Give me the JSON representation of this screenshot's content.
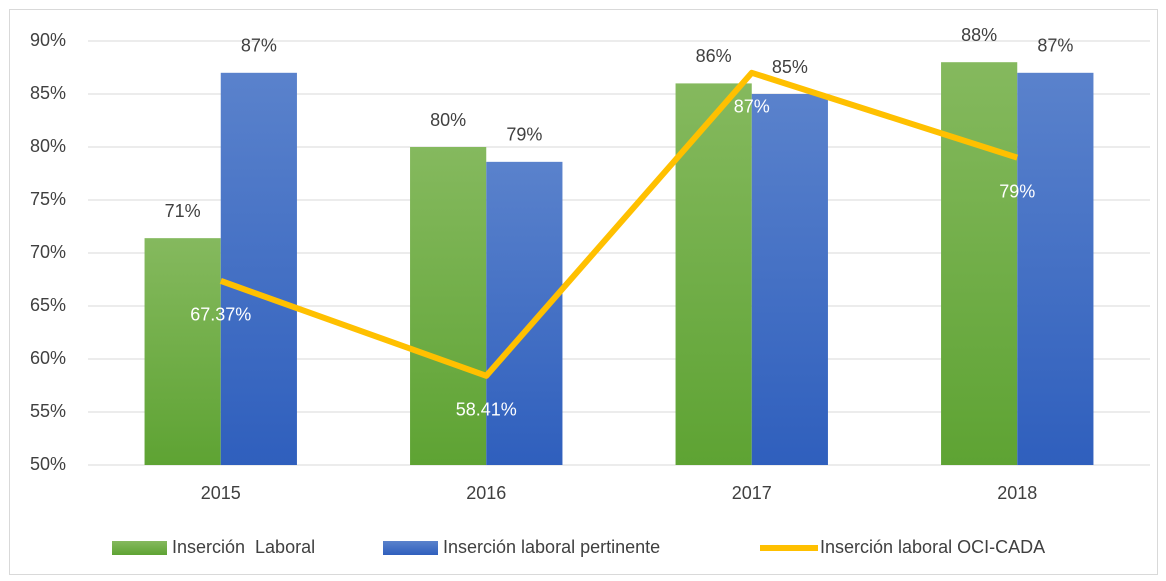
{
  "chart_data": {
    "type": "bar",
    "categories": [
      "2015",
      "2016",
      "2017",
      "2018"
    ],
    "series": [
      {
        "name": "Inserción  Laboral",
        "type": "bar",
        "color": "#70ad47",
        "values": [
          71.4,
          80,
          86,
          88
        ],
        "value_labels": [
          "71%",
          "80%",
          "86%",
          "88%"
        ]
      },
      {
        "name": "Inserción laboral pertinente",
        "type": "bar",
        "color": "#4472c4",
        "values": [
          87,
          78.6,
          85,
          87
        ],
        "value_labels": [
          "87%",
          "79%",
          "85%",
          "87%"
        ]
      },
      {
        "name": "Inserción laboral OCI-CADA",
        "type": "line",
        "color": "#ffc000",
        "values": [
          67.37,
          58.41,
          87,
          79
        ],
        "value_labels": [
          "67.37%",
          "58.41%",
          "87%",
          "79%"
        ]
      }
    ],
    "ylim": [
      50,
      90
    ],
    "yticks": [
      {
        "value": 50,
        "label": "50%"
      },
      {
        "value": 55,
        "label": "55%"
      },
      {
        "value": 60,
        "label": "60%"
      },
      {
        "value": 65,
        "label": "65%"
      },
      {
        "value": 70,
        "label": "70%"
      },
      {
        "value": 75,
        "label": "75%"
      },
      {
        "value": 80,
        "label": "80%"
      },
      {
        "value": 85,
        "label": "85%"
      },
      {
        "value": 90,
        "label": "90%"
      }
    ],
    "grid": true,
    "legend": "bottom"
  }
}
